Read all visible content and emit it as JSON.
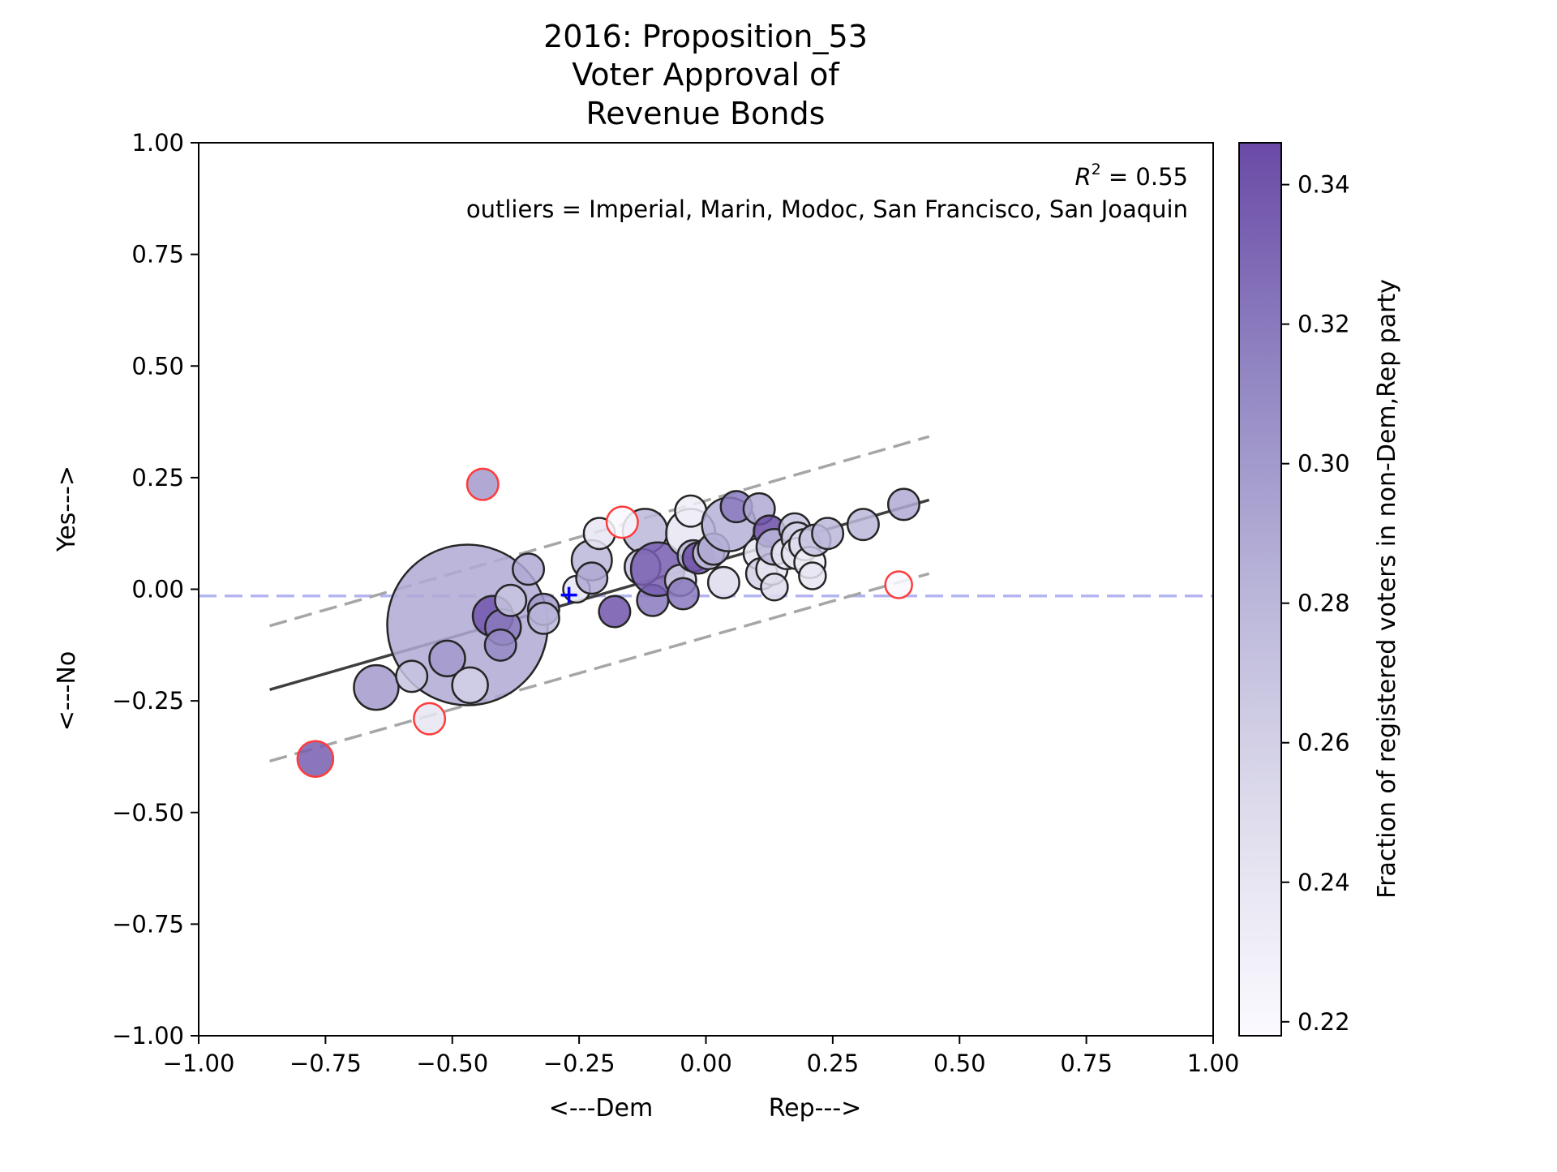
{
  "chart_data": {
    "type": "scatter",
    "title_lines": [
      "2016: Proposition_53",
      "Voter Approval of",
      "Revenue Bonds"
    ],
    "xlabel_left": "<---Dem",
    "xlabel_right": "Rep--->",
    "ylabel_left": "<---No",
    "ylabel_right": "Yes--->",
    "xlim": [
      -1.0,
      1.0
    ],
    "ylim": [
      -1.0,
      1.0
    ],
    "xticks": [
      -1.0,
      -0.75,
      -0.5,
      -0.25,
      0.0,
      0.25,
      0.5,
      0.75,
      1.0
    ],
    "yticks": [
      -1.0,
      -0.75,
      -0.5,
      -0.25,
      0.0,
      0.25,
      0.5,
      0.75,
      1.0
    ],
    "xtick_labels": [
      "−1.00",
      "−0.75",
      "−0.50",
      "−0.25",
      "0.00",
      "0.25",
      "0.50",
      "0.75",
      "1.00"
    ],
    "ytick_labels": [
      "−1.00",
      "−0.75",
      "−0.50",
      "−0.25",
      "0.00",
      "0.25",
      "0.50",
      "0.75",
      "1.00"
    ],
    "r2_prefix": "R",
    "r2_exp": "2",
    "r2_value": " = 0.55",
    "outliers_text": "outliers = Imperial, Marin, Modoc, San Francisco, San Joaquin",
    "colorbar": {
      "label": "Fraction of registered voters in non-Dem,Rep party",
      "range": [
        0.218,
        0.346
      ],
      "ticks": [
        0.22,
        0.24,
        0.26,
        0.28,
        0.3,
        0.32,
        0.34
      ],
      "tick_labels": [
        "0.22",
        "0.24",
        "0.26",
        "0.28",
        "0.30",
        "0.32",
        "0.34"
      ],
      "cmap": "Purples"
    },
    "fit_line": {
      "x": [
        -0.86,
        0.44
      ],
      "y": [
        -0.225,
        0.2
      ]
    },
    "upper_band": {
      "x": [
        -0.86,
        0.44
      ],
      "y": [
        -0.082,
        0.342
      ]
    },
    "lower_band": {
      "x": [
        -0.86,
        0.44
      ],
      "y": [
        -0.385,
        0.035
      ]
    },
    "baseline_y": -0.015,
    "mean_point": {
      "x": -0.27,
      "y": -0.013
    },
    "points": [
      {
        "x": -0.47,
        "y": -0.08,
        "s": 18,
        "c": 0.29
      },
      {
        "x": -0.65,
        "y": -0.22,
        "s": 5,
        "c": 0.3
      },
      {
        "x": -0.58,
        "y": -0.195,
        "s": 3.5,
        "c": 0.27
      },
      {
        "x": -0.51,
        "y": -0.155,
        "s": 4,
        "c": 0.3
      },
      {
        "x": -0.465,
        "y": -0.215,
        "s": 4,
        "c": 0.26
      },
      {
        "x": -0.42,
        "y": -0.06,
        "s": 4.5,
        "c": 0.34
      },
      {
        "x": -0.4,
        "y": -0.085,
        "s": 4,
        "c": 0.32
      },
      {
        "x": -0.405,
        "y": -0.125,
        "s": 3.5,
        "c": 0.31
      },
      {
        "x": -0.385,
        "y": -0.025,
        "s": 3.5,
        "c": 0.27
      },
      {
        "x": -0.35,
        "y": 0.045,
        "s": 3.5,
        "c": 0.29
      },
      {
        "x": -0.32,
        "y": -0.045,
        "s": 3.5,
        "c": 0.3
      },
      {
        "x": -0.32,
        "y": -0.065,
        "s": 3.5,
        "c": 0.28
      },
      {
        "x": -0.255,
        "y": 0.0,
        "s": 3,
        "c": 0.24
      },
      {
        "x": -0.225,
        "y": 0.065,
        "s": 4.5,
        "c": 0.28
      },
      {
        "x": -0.225,
        "y": 0.025,
        "s": 3.5,
        "c": 0.29
      },
      {
        "x": -0.21,
        "y": 0.125,
        "s": 3.5,
        "c": 0.24
      },
      {
        "x": -0.18,
        "y": -0.05,
        "s": 3.5,
        "c": 0.34
      },
      {
        "x": -0.12,
        "y": 0.13,
        "s": 5,
        "c": 0.28
      },
      {
        "x": -0.125,
        "y": 0.05,
        "s": 4,
        "c": 0.27
      },
      {
        "x": -0.105,
        "y": -0.025,
        "s": 3.5,
        "c": 0.32
      },
      {
        "x": -0.095,
        "y": 0.045,
        "s": 6,
        "c": 0.335
      },
      {
        "x": -0.05,
        "y": 0.02,
        "s": 3.5,
        "c": 0.26
      },
      {
        "x": -0.045,
        "y": -0.01,
        "s": 3.5,
        "c": 0.32
      },
      {
        "x": -0.03,
        "y": 0.125,
        "s": 5.5,
        "c": 0.24
      },
      {
        "x": -0.03,
        "y": 0.175,
        "s": 3.5,
        "c": 0.23
      },
      {
        "x": -0.025,
        "y": 0.075,
        "s": 3.5,
        "c": 0.28
      },
      {
        "x": -0.015,
        "y": 0.07,
        "s": 3.5,
        "c": 0.345
      },
      {
        "x": 0.005,
        "y": 0.08,
        "s": 3.5,
        "c": 0.27
      },
      {
        "x": 0.015,
        "y": 0.09,
        "s": 3.5,
        "c": 0.29
      },
      {
        "x": 0.035,
        "y": 0.015,
        "s": 3.5,
        "c": 0.25
      },
      {
        "x": 0.045,
        "y": 0.145,
        "s": 6,
        "c": 0.285
      },
      {
        "x": 0.06,
        "y": 0.185,
        "s": 3.5,
        "c": 0.32
      },
      {
        "x": 0.105,
        "y": 0.18,
        "s": 3.5,
        "c": 0.29
      },
      {
        "x": 0.105,
        "y": 0.08,
        "s": 3.5,
        "c": 0.24
      },
      {
        "x": 0.11,
        "y": 0.035,
        "s": 3.5,
        "c": 0.26
      },
      {
        "x": 0.125,
        "y": 0.13,
        "s": 3.5,
        "c": 0.345
      },
      {
        "x": 0.13,
        "y": 0.045,
        "s": 3.5,
        "c": 0.24
      },
      {
        "x": 0.135,
        "y": 0.095,
        "s": 4,
        "c": 0.28
      },
      {
        "x": 0.135,
        "y": 0.005,
        "s": 3,
        "c": 0.25
      },
      {
        "x": 0.16,
        "y": 0.08,
        "s": 3.5,
        "c": 0.24
      },
      {
        "x": 0.175,
        "y": 0.135,
        "s": 3.5,
        "c": 0.27
      },
      {
        "x": 0.18,
        "y": 0.115,
        "s": 3.5,
        "c": 0.26
      },
      {
        "x": 0.18,
        "y": 0.08,
        "s": 3.5,
        "c": 0.24
      },
      {
        "x": 0.195,
        "y": 0.1,
        "s": 3.5,
        "c": 0.25
      },
      {
        "x": 0.205,
        "y": 0.06,
        "s": 3.5,
        "c": 0.23
      },
      {
        "x": 0.21,
        "y": 0.03,
        "s": 3,
        "c": 0.24
      },
      {
        "x": 0.215,
        "y": 0.11,
        "s": 3.5,
        "c": 0.27
      },
      {
        "x": 0.24,
        "y": 0.125,
        "s": 3.5,
        "c": 0.28
      },
      {
        "x": 0.31,
        "y": 0.145,
        "s": 3.5,
        "c": 0.28
      },
      {
        "x": 0.39,
        "y": 0.19,
        "s": 3.5,
        "c": 0.29
      }
    ],
    "outlier_points": [
      {
        "x": -0.77,
        "y": -0.38,
        "s": 4,
        "c": 0.335
      },
      {
        "x": -0.44,
        "y": 0.235,
        "s": 3.5,
        "c": 0.3
      },
      {
        "x": -0.545,
        "y": -0.29,
        "s": 3.5,
        "c": 0.24
      },
      {
        "x": -0.165,
        "y": 0.15,
        "s": 3.5,
        "c": 0.22
      },
      {
        "x": 0.38,
        "y": 0.01,
        "s": 3,
        "c": 0.22
      }
    ],
    "colors": {
      "fit_line": "#3f3f3f",
      "band": "#a6a6a6",
      "baseline": "#b4b4f0",
      "mean_marker": "#0000ff",
      "outlier_edge": "#ff3b3b",
      "point_edge": "#262626"
    }
  }
}
